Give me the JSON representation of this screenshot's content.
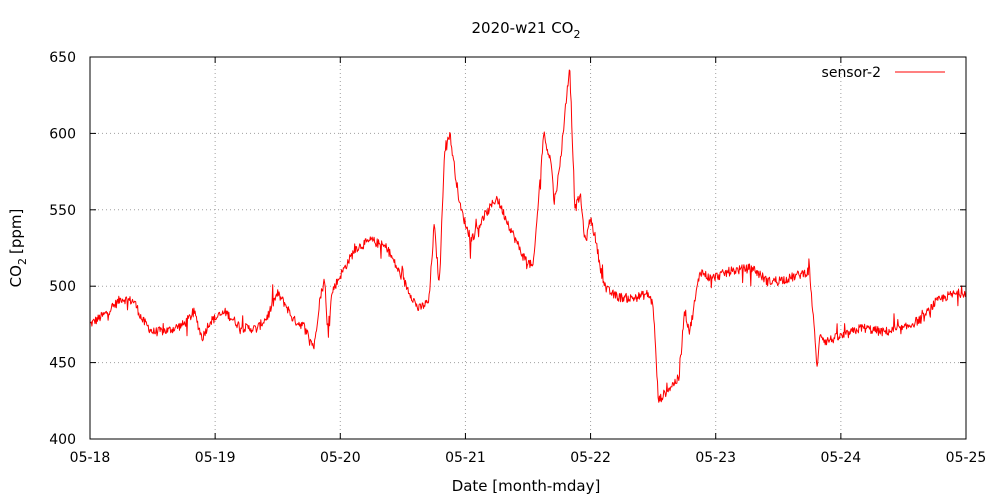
{
  "chart_data": {
    "type": "line",
    "title": "2020-w21 CO",
    "title_subscript": "2",
    "xlabel": "Date [month-mday]",
    "ylabel": "CO",
    "ylabel_subscript": "2",
    "ylabel_unit": "[ppm]",
    "x_tick_labels": [
      "05-18",
      "05-19",
      "05-20",
      "05-21",
      "05-22",
      "05-23",
      "05-24",
      "05-25"
    ],
    "xlim": [
      "2020-05-18",
      "2020-05-25"
    ],
    "ylim": [
      400,
      650
    ],
    "y_ticks": [
      400,
      450,
      500,
      550,
      600,
      650
    ],
    "grid": true,
    "legend_position": "top-right",
    "colors": {
      "series": "#ff0000",
      "grid": "#a0a0a0",
      "axis": "#000000"
    },
    "series": [
      {
        "name": "sensor-2",
        "x": [
          "2020-05-18",
          "2020-05-18 03:00",
          "2020-05-18 06:00",
          "2020-05-18 08:30",
          "2020-05-18 10:00",
          "2020-05-18 12:00",
          "2020-05-18 15:00",
          "2020-05-18 18:00",
          "2020-05-18 20:00",
          "2020-05-18 21:30",
          "2020-05-18 23:00",
          "2020-05-19 02:00",
          "2020-05-19 05:00",
          "2020-05-19 08:00",
          "2020-05-19 10:00",
          "2020-05-19 11:30",
          "2020-05-19 12:00",
          "2020-05-19 13:30",
          "2020-05-19 15:00",
          "2020-05-19 17:00",
          "2020-05-19 19:00",
          "2020-05-19 20:00",
          "2020-05-19 21:00",
          "2020-05-19 21:30",
          "2020-05-19 22:30",
          "2020-05-20",
          "2020-05-20 03:00",
          "2020-05-20 06:00",
          "2020-05-20 09:00",
          "2020-05-20 11:00",
          "2020-05-20 13:00",
          "2020-05-20 15:00",
          "2020-05-20 17:00",
          "2020-05-20 18:00",
          "2020-05-20 19:00",
          "2020-05-20 20:00",
          "2020-05-20 21:00",
          "2020-05-20 22:00",
          "2020-05-20 23:00",
          "2020-05-21 01:00",
          "2020-05-21 03:00",
          "2020-05-21 06:00",
          "2020-05-21 09:00",
          "2020-05-21 11:00",
          "2020-05-21 13:00",
          "2020-05-21 15:00",
          "2020-05-21 16:30",
          "2020-05-21 17:00",
          "2020-05-21 18:00",
          "2020-05-21 20:00",
          "2020-05-21 21:00",
          "2020-05-21 22:00",
          "2020-05-21 23:00",
          "2020-05-22",
          "2020-05-22 01:00",
          "2020-05-22 02:00",
          "2020-05-22 03:00",
          "2020-05-22 05:00",
          "2020-05-22 08:00",
          "2020-05-22 11:00",
          "2020-05-22 12:00",
          "2020-05-22 13:00",
          "2020-05-22 15:00",
          "2020-05-22 17:00",
          "2020-05-22 18:00",
          "2020-05-22 19:00",
          "2020-05-22 21:00",
          "2020-05-22 23:00",
          "2020-05-23 03:00",
          "2020-05-23 07:00",
          "2020-05-23 10:00",
          "2020-05-23 14:00",
          "2020-05-23 18:00",
          "2020-05-23 19:30",
          "2020-05-23 20:00",
          "2020-05-23 21:00",
          "2020-05-23 22:00",
          "2020-05-24 01:00",
          "2020-05-24 04:00",
          "2020-05-24 08:00",
          "2020-05-24 12:00",
          "2020-05-24 16:00",
          "2020-05-24 18:00",
          "2020-05-24 20:00",
          "2020-05-24 22:00",
          "2020-05-25"
        ],
        "y": [
          475,
          482,
          492,
          490,
          478,
          470,
          471,
          475,
          483,
          466,
          477,
          483,
          473,
          472,
          480,
          492,
          495,
          488,
          478,
          474,
          460,
          490,
          505,
          472,
          497,
          507,
          525,
          530,
          525,
          511,
          498,
          485,
          490,
          540,
          500,
          590,
          600,
          575,
          552,
          530,
          542,
          558,
          535,
          520,
          512,
          600,
          580,
          555,
          575,
          645,
          550,
          560,
          528,
          545,
          530,
          510,
          498,
          493,
          492,
          495,
          488,
          425,
          433,
          440,
          485,
          470,
          510,
          505,
          510,
          512,
          503,
          505,
          510,
          445,
          470,
          464,
          465,
          468,
          473,
          470,
          472,
          480,
          489,
          493,
          495,
          496
        ]
      }
    ]
  }
}
